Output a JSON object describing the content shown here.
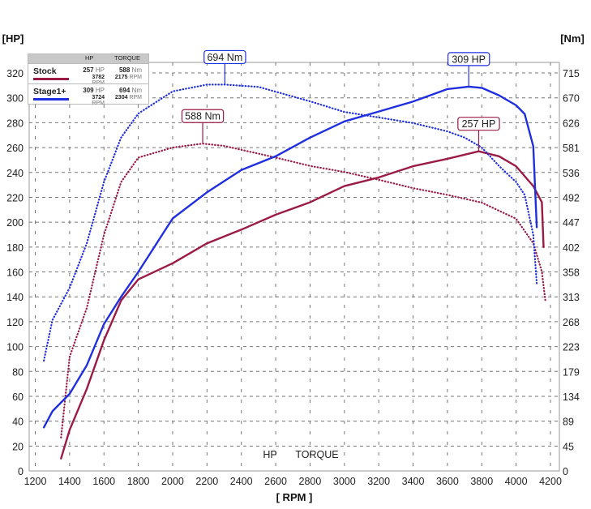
{
  "chart_data": {
    "type": "line",
    "xlabel": "[ RPM ]",
    "ylabel_left": "[HP]",
    "ylabel_right": "[Nm]",
    "xlim": [
      1200,
      4200
    ],
    "ylim_left": [
      0,
      320
    ],
    "ylim_right": [
      0,
      715
    ],
    "x_ticks": [
      "1200",
      "1400",
      "1600",
      "1800",
      "2000",
      "2200",
      "2400",
      "2600",
      "2800",
      "3000",
      "3200",
      "3400",
      "3600",
      "3800",
      "4000",
      "4200"
    ],
    "y_ticks_left": [
      "0",
      "20",
      "40",
      "60",
      "80",
      "100",
      "120",
      "140",
      "160",
      "180",
      "200",
      "220",
      "240",
      "260",
      "280",
      "300",
      "320"
    ],
    "y_ticks_right": [
      "0",
      "45",
      "89",
      "134",
      "179",
      "223",
      "268",
      "313",
      "358",
      "402",
      "447",
      "492",
      "536",
      "581",
      "626",
      "670",
      "715"
    ],
    "grid": true,
    "bottom_labels": {
      "hp": "HP",
      "torque": "TORQUE"
    },
    "legend": {
      "placement": "top-left",
      "headers": {
        "hp": "HP",
        "torque": "TORQUE"
      },
      "hp_unit": "HP",
      "torque_unit": "Nm",
      "rpm_unit": "RPM",
      "rows": [
        {
          "name": "Stock",
          "hp": "257",
          "hp_rpm": "3782",
          "torque": "588",
          "torque_rpm": "2175"
        },
        {
          "name": "Stage1+",
          "hp": "309",
          "hp_rpm": "3724",
          "torque": "694",
          "torque_rpm": "2304"
        }
      ]
    },
    "series": [
      {
        "name": "Stock",
        "metric": "HP",
        "unit": "HP",
        "color": "#9b1b45",
        "style": "solid",
        "x": [
          1350,
          1400,
          1500,
          1600,
          1700,
          1800,
          2000,
          2200,
          2400,
          2600,
          2800,
          3000,
          3200,
          3400,
          3600,
          3782,
          3900,
          4000,
          4100,
          4150,
          4160
        ],
        "y": [
          10,
          33,
          66,
          105,
          137,
          154,
          167,
          183,
          194,
          206,
          216,
          229,
          236,
          245,
          251,
          257,
          253,
          245,
          229,
          216,
          180
        ]
      },
      {
        "name": "Stock",
        "metric": "TORQUE",
        "unit": "Nm",
        "color": "#9b1b45",
        "style": "dotted",
        "x": [
          1350,
          1400,
          1500,
          1600,
          1700,
          1800,
          2000,
          2175,
          2300,
          2400,
          2600,
          2800,
          3000,
          3200,
          3400,
          3600,
          3800,
          4000,
          4100,
          4150,
          4170
        ],
        "y": [
          60,
          205,
          293,
          424,
          519,
          563,
          581,
          588,
          584,
          577,
          563,
          548,
          537,
          523,
          508,
          496,
          482,
          453,
          409,
          358,
          307
        ]
      },
      {
        "name": "Stage1+",
        "metric": "HP",
        "unit": "HP",
        "color": "#1f2fe0",
        "style": "solid",
        "x": [
          1250,
          1300,
          1400,
          1500,
          1600,
          1700,
          1800,
          2000,
          2200,
          2400,
          2600,
          2800,
          3000,
          3200,
          3400,
          3600,
          3724,
          3800,
          3900,
          4000,
          4050,
          4100,
          4120
        ],
        "y": [
          35,
          48,
          62,
          85,
          118,
          140,
          160,
          203,
          224,
          242,
          253,
          268,
          281,
          289,
          297,
          307,
          309,
          308,
          302,
          294,
          287,
          261,
          196
        ]
      },
      {
        "name": "Stage1+",
        "metric": "TORQUE",
        "unit": "Nm",
        "color": "#1f2fe0",
        "style": "dotted",
        "x": [
          1250,
          1300,
          1400,
          1500,
          1600,
          1700,
          1800,
          2000,
          2200,
          2304,
          2500,
          2800,
          3000,
          3200,
          3400,
          3600,
          3700,
          3800,
          3900,
          4000,
          4050,
          4100,
          4120
        ],
        "y": [
          198,
          271,
          329,
          409,
          519,
          599,
          642,
          682,
          694,
          694,
          690,
          664,
          645,
          635,
          625,
          610,
          599,
          581,
          548,
          519,
          496,
          424,
          336
        ]
      }
    ],
    "annotations": [
      {
        "text": "694 Nm",
        "series": 3,
        "x": 2304,
        "y": 694
      },
      {
        "text": "588 Nm",
        "series": 1,
        "x": 2175,
        "y": 588
      },
      {
        "text": "309 HP",
        "series": 2,
        "x": 3724,
        "y": 309
      },
      {
        "text": "257 HP",
        "series": 0,
        "x": 3782,
        "y": 257
      }
    ]
  }
}
